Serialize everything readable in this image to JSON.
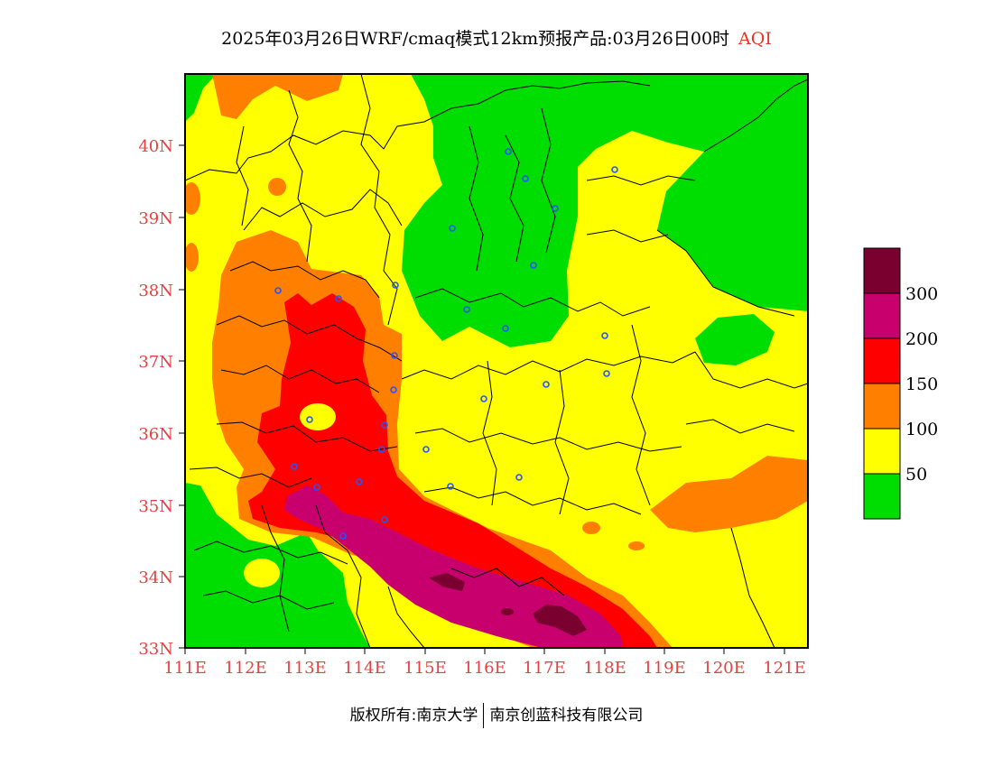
{
  "title": {
    "main": "2025年03月26日WRF/cmaq模式12km预报产品:03月26日00时",
    "product": "AQI"
  },
  "map": {
    "lat_labels": [
      "40N",
      "39N",
      "38N",
      "37N",
      "36N",
      "35N",
      "34N",
      "33N"
    ],
    "lon_labels": [
      "111E",
      "112E",
      "113E",
      "114E",
      "115E",
      "116E",
      "117E",
      "118E",
      "119E",
      "120E",
      "121E"
    ]
  },
  "legend": {
    "colors": [
      "#7a0030",
      "#c8006e",
      "#ff0000",
      "#ff7f00",
      "#ffff00",
      "#00dd00"
    ],
    "labels": [
      "300",
      "200",
      "150",
      "100",
      "50"
    ]
  },
  "footer": {
    "left": "版权所有:南京大学",
    "right": "南京创蓝科技有限公司"
  }
}
